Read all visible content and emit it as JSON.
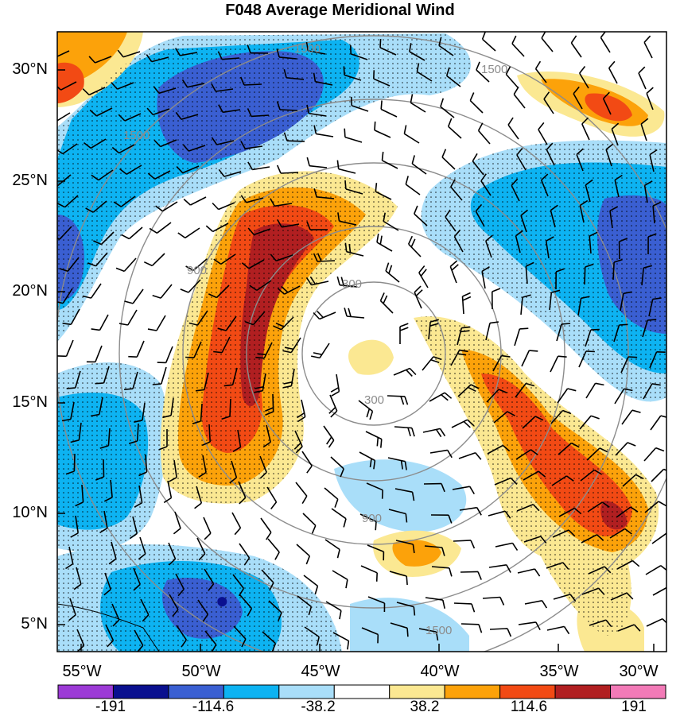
{
  "chart_data": {
    "type": "heatmap",
    "title": "F048 Average Meridional Wind",
    "xlabel": "",
    "ylabel": "",
    "x_ticks": [
      "55°W",
      "50°W",
      "45°W",
      "40°W",
      "35°W",
      "30°W"
    ],
    "y_ticks": [
      "30°N",
      "25°N",
      "20°N",
      "15°N",
      "10°N",
      "5°N"
    ],
    "xlim": [
      -55.0,
      -29.5
    ],
    "ylim": [
      3.5,
      32
    ],
    "colorbar": {
      "labels": [
        "-191",
        "-114.6",
        "-38.2",
        "38.2",
        "114.6",
        "191"
      ],
      "bins": 11,
      "colors": [
        "#9c3ad6",
        "#0a108f",
        "#3a5fd2",
        "#0db3f2",
        "#a9def9",
        "#ffffff",
        "#fbe892",
        "#fca20a",
        "#f24a14",
        "#b11f21",
        "#f27ab7"
      ]
    },
    "range_ring_labels": [
      "300",
      "300",
      "900",
      "900",
      "1500",
      "1500",
      "1500",
      "1500"
    ],
    "marker": {
      "label": "storm center",
      "lon": -48.1,
      "lat": 5.8
    }
  }
}
